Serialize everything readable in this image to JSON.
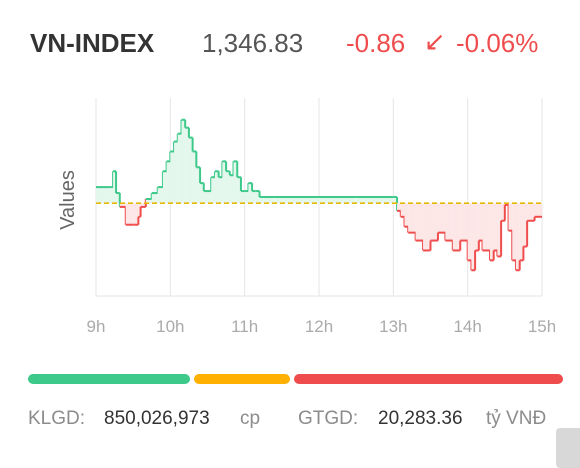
{
  "header": {
    "name": "VN-INDEX",
    "value": "1,346.83",
    "change": "-0.86",
    "arrow_icon": "arrow-down-left-icon",
    "arrow_glyph": "↙",
    "percent": "-0.06%"
  },
  "colors": {
    "up": "#3cc98a",
    "down": "#ef4d4d",
    "flat": "#ffb000",
    "reference_line": "#e7b800",
    "label": "#8c8c8c",
    "text": "#333333"
  },
  "chart_data": {
    "type": "line",
    "title": "",
    "xlabel": "",
    "ylabel": "Values",
    "x_ticks": [
      "9h",
      "10h",
      "11h",
      "12h",
      "13h",
      "14h",
      "15h"
    ],
    "x_range": [
      9,
      15
    ],
    "ylim": [
      1343,
      1353
    ],
    "reference": 1347.69,
    "grid": "vertical",
    "series": [
      {
        "x": [
          9.0,
          9.2,
          9.23,
          9.27,
          9.32,
          9.4,
          9.5,
          9.57,
          9.6,
          9.67,
          9.75,
          9.83,
          9.9,
          9.95,
          10.0,
          10.05,
          10.1,
          10.15,
          10.2,
          10.25,
          10.3,
          10.35,
          10.4,
          10.45,
          10.5,
          10.55,
          10.6,
          10.65,
          10.7,
          10.75,
          10.8,
          10.85,
          10.9,
          10.95,
          11.0,
          11.05,
          11.1,
          11.15,
          11.2,
          11.4,
          12.0,
          12.5,
          13.0,
          13.05,
          13.1,
          13.15,
          13.2,
          13.3,
          13.4,
          13.5,
          13.6,
          13.7,
          13.8,
          13.9,
          14.0,
          14.05,
          14.1,
          14.15,
          14.2,
          14.3,
          14.35,
          14.4,
          14.45,
          14.5,
          14.55,
          14.6,
          14.65,
          14.7,
          14.75,
          14.8,
          14.9,
          15.0
        ],
        "y": [
          1348.5,
          1348.5,
          1349.3,
          1348.2,
          1347.5,
          1346.6,
          1346.6,
          1347.0,
          1347.5,
          1347.9,
          1348.2,
          1348.5,
          1349.3,
          1349.8,
          1350.3,
          1350.8,
          1351.2,
          1351.9,
          1351.5,
          1351.0,
          1350.3,
          1349.5,
          1348.7,
          1348.3,
          1348.3,
          1349.0,
          1349.3,
          1349.0,
          1349.8,
          1349.3,
          1349.1,
          1349.8,
          1349.0,
          1348.3,
          1348.3,
          1348.7,
          1348.3,
          1348.3,
          1348.0,
          1348.0,
          1348.0,
          1348.0,
          1348.0,
          1347.3,
          1347.0,
          1346.5,
          1346.2,
          1345.8,
          1345.3,
          1345.8,
          1346.2,
          1345.8,
          1345.3,
          1345.8,
          1344.8,
          1344.3,
          1345.3,
          1345.8,
          1345.3,
          1344.8,
          1345.3,
          1345.0,
          1346.8,
          1347.6,
          1346.3,
          1344.8,
          1344.3,
          1344.8,
          1345.5,
          1346.8,
          1347.0,
          1347.0
        ]
      }
    ]
  },
  "breadth": {
    "up_fraction": 0.31,
    "flat_fraction": 0.18,
    "down_fraction": 0.51
  },
  "footer": {
    "klgd_label": "KLGD:",
    "klgd_value": "850,026,973",
    "klgd_unit": "cp",
    "gtgd_label": "GTGD:",
    "gtgd_value": "20,283.36",
    "gtgd_unit": "tỷ VNĐ"
  }
}
